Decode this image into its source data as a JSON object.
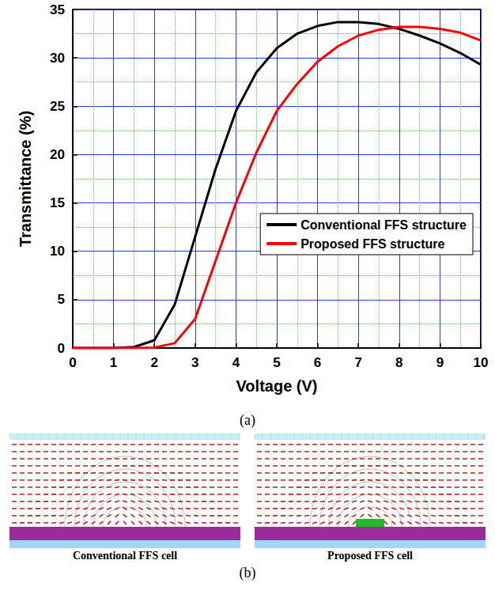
{
  "chart_data": {
    "type": "line",
    "x_label": "Voltage (V)",
    "y_label": "Transmittance (%)",
    "x": [
      0,
      0.5,
      1,
      1.5,
      2,
      2.5,
      3,
      3.5,
      4,
      4.5,
      5,
      5.5,
      6,
      6.5,
      7,
      7.5,
      8,
      8.5,
      9,
      9.5,
      10
    ],
    "series": [
      {
        "name": "Conventional FFS structure",
        "color": "#000000",
        "values": [
          0,
          0,
          0,
          0.1,
          0.8,
          4.5,
          11.5,
          18.5,
          24.5,
          28.5,
          31,
          32.5,
          33.3,
          33.7,
          33.7,
          33.5,
          33,
          32.3,
          31.5,
          30.5,
          29.3
        ]
      },
      {
        "name": "Proposed FFS structure",
        "color": "#ff0000",
        "values": [
          0,
          0,
          0,
          0,
          0.05,
          0.5,
          3,
          9,
          15,
          20.2,
          24.5,
          27.3,
          29.6,
          31.2,
          32.3,
          32.9,
          33.2,
          33.2,
          33,
          32.6,
          31.8
        ]
      }
    ],
    "xlim": [
      0,
      10
    ],
    "xticks": [
      0,
      1,
      2,
      3,
      4,
      5,
      6,
      7,
      8,
      9,
      10
    ],
    "ylim": [
      0,
      35
    ],
    "yticks": [
      0,
      5,
      10,
      15,
      20,
      25,
      30,
      35
    ],
    "grid": true,
    "legend": "right"
  },
  "panel_labels": [
    "(a)",
    "(b)"
  ],
  "cells": [
    {
      "label": "Conventional FFS cell"
    },
    {
      "label": "Proposed FFS cell"
    }
  ]
}
